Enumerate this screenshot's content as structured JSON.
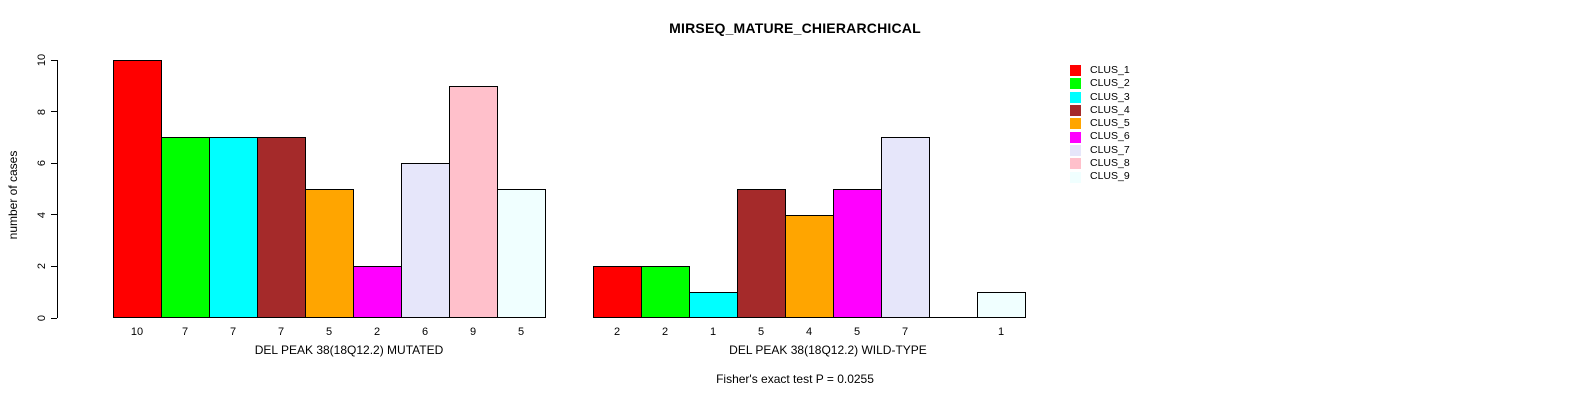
{
  "chart_data": {
    "type": "bar",
    "title": "MIRSEQ_MATURE_CHIERARCHICAL",
    "ylabel": "number of cases",
    "ylim": [
      0,
      10
    ],
    "yticks": [
      0,
      2,
      4,
      6,
      8,
      10
    ],
    "grid": false,
    "legend_position": "right-outside",
    "categories": [
      "CLUS_1",
      "CLUS_2",
      "CLUS_3",
      "CLUS_4",
      "CLUS_5",
      "CLUS_6",
      "CLUS_7",
      "CLUS_8",
      "CLUS_9"
    ],
    "legend": [
      {
        "label": "CLUS_1",
        "color": "#FF0000"
      },
      {
        "label": "CLUS_2",
        "color": "#00FF00"
      },
      {
        "label": "CLUS_3",
        "color": "#00FFFF"
      },
      {
        "label": "CLUS_4",
        "color": "#A52A2A"
      },
      {
        "label": "CLUS_5",
        "color": "#FFA500"
      },
      {
        "label": "CLUS_6",
        "color": "#FF00FF"
      },
      {
        "label": "CLUS_7",
        "color": "#E6E6FA"
      },
      {
        "label": "CLUS_8",
        "color": "#FFC0CB"
      },
      {
        "label": "CLUS_9",
        "color": "#F0FFFF"
      }
    ],
    "groups": [
      {
        "label": "DEL PEAK 38(18Q12.2) MUTATED",
        "values": [
          10,
          7,
          7,
          7,
          5,
          2,
          6,
          9,
          5
        ],
        "bar_labels": [
          "10",
          "7",
          "7",
          "7",
          "5",
          "2",
          "6",
          "9",
          "5"
        ]
      },
      {
        "label": "DEL PEAK 38(18Q12.2) WILD-TYPE",
        "values": [
          2,
          2,
          1,
          5,
          4,
          5,
          7,
          0,
          1
        ],
        "bar_labels": [
          "2",
          "2",
          "1",
          "5",
          "4",
          "5",
          "7",
          "",
          "1"
        ]
      }
    ],
    "annotation": "Fisher's exact test P = 0.0255"
  }
}
